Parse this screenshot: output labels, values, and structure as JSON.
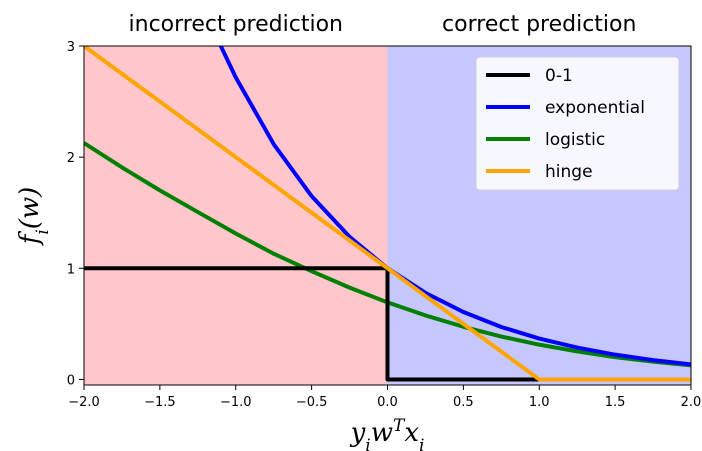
{
  "chart_data": {
    "type": "line",
    "xlabel": "y_i w^T x_i",
    "ylabel": "f_i(w)",
    "xlim": [
      -2.0,
      2.0
    ],
    "ylim": [
      -0.05,
      3.0
    ],
    "x_ticks": [
      -2.0,
      -1.5,
      -1.0,
      -0.5,
      0.0,
      0.5,
      1.0,
      1.5,
      2.0
    ],
    "x_tick_labels": [
      "−2.0",
      "−1.5",
      "−1.0",
      "−0.5",
      "0.0",
      "0.5",
      "1.0",
      "1.5",
      "2.0"
    ],
    "y_ticks": [
      0,
      1,
      2,
      3
    ],
    "y_tick_labels": [
      "0",
      "1",
      "2",
      "3"
    ],
    "grid": false,
    "legend_position": "top-right",
    "regions": [
      {
        "label": "incorrect prediction",
        "x_range": [
          -2.0,
          0.0
        ],
        "color": "#ffc7cb"
      },
      {
        "label": "correct prediction",
        "x_range": [
          0.0,
          2.0
        ],
        "color": "#c6c7ff"
      }
    ],
    "series": [
      {
        "name": "0-1",
        "color": "#000000",
        "x": [
          -2.0,
          0.0,
          0.0,
          2.0
        ],
        "y": [
          1,
          1,
          0,
          0
        ]
      },
      {
        "name": "exponential",
        "color": "#0000ff",
        "x": [
          -1.1,
          -1.0,
          -0.75,
          -0.5,
          -0.25,
          0.0,
          0.25,
          0.5,
          0.75,
          1.0,
          1.25,
          1.5,
          1.75,
          2.0
        ],
        "y": [
          3.004,
          2.718,
          2.117,
          1.649,
          1.284,
          1.0,
          0.779,
          0.607,
          0.472,
          0.368,
          0.287,
          0.223,
          0.174,
          0.135
        ]
      },
      {
        "name": "logistic",
        "color": "#008000",
        "x": [
          -2.0,
          -1.75,
          -1.5,
          -1.25,
          -1.0,
          -0.75,
          -0.5,
          -0.25,
          0.0,
          0.25,
          0.5,
          0.75,
          1.0,
          1.25,
          1.5,
          1.75,
          2.0
        ],
        "y": [
          2.127,
          1.908,
          1.701,
          1.506,
          1.313,
          1.131,
          0.974,
          0.826,
          0.693,
          0.576,
          0.474,
          0.386,
          0.313,
          0.252,
          0.201,
          0.16,
          0.127
        ]
      },
      {
        "name": "hinge",
        "color": "#ffa500",
        "x": [
          -2.0,
          1.0,
          2.0
        ],
        "y": [
          3.0,
          0.0,
          0.0
        ]
      }
    ]
  }
}
